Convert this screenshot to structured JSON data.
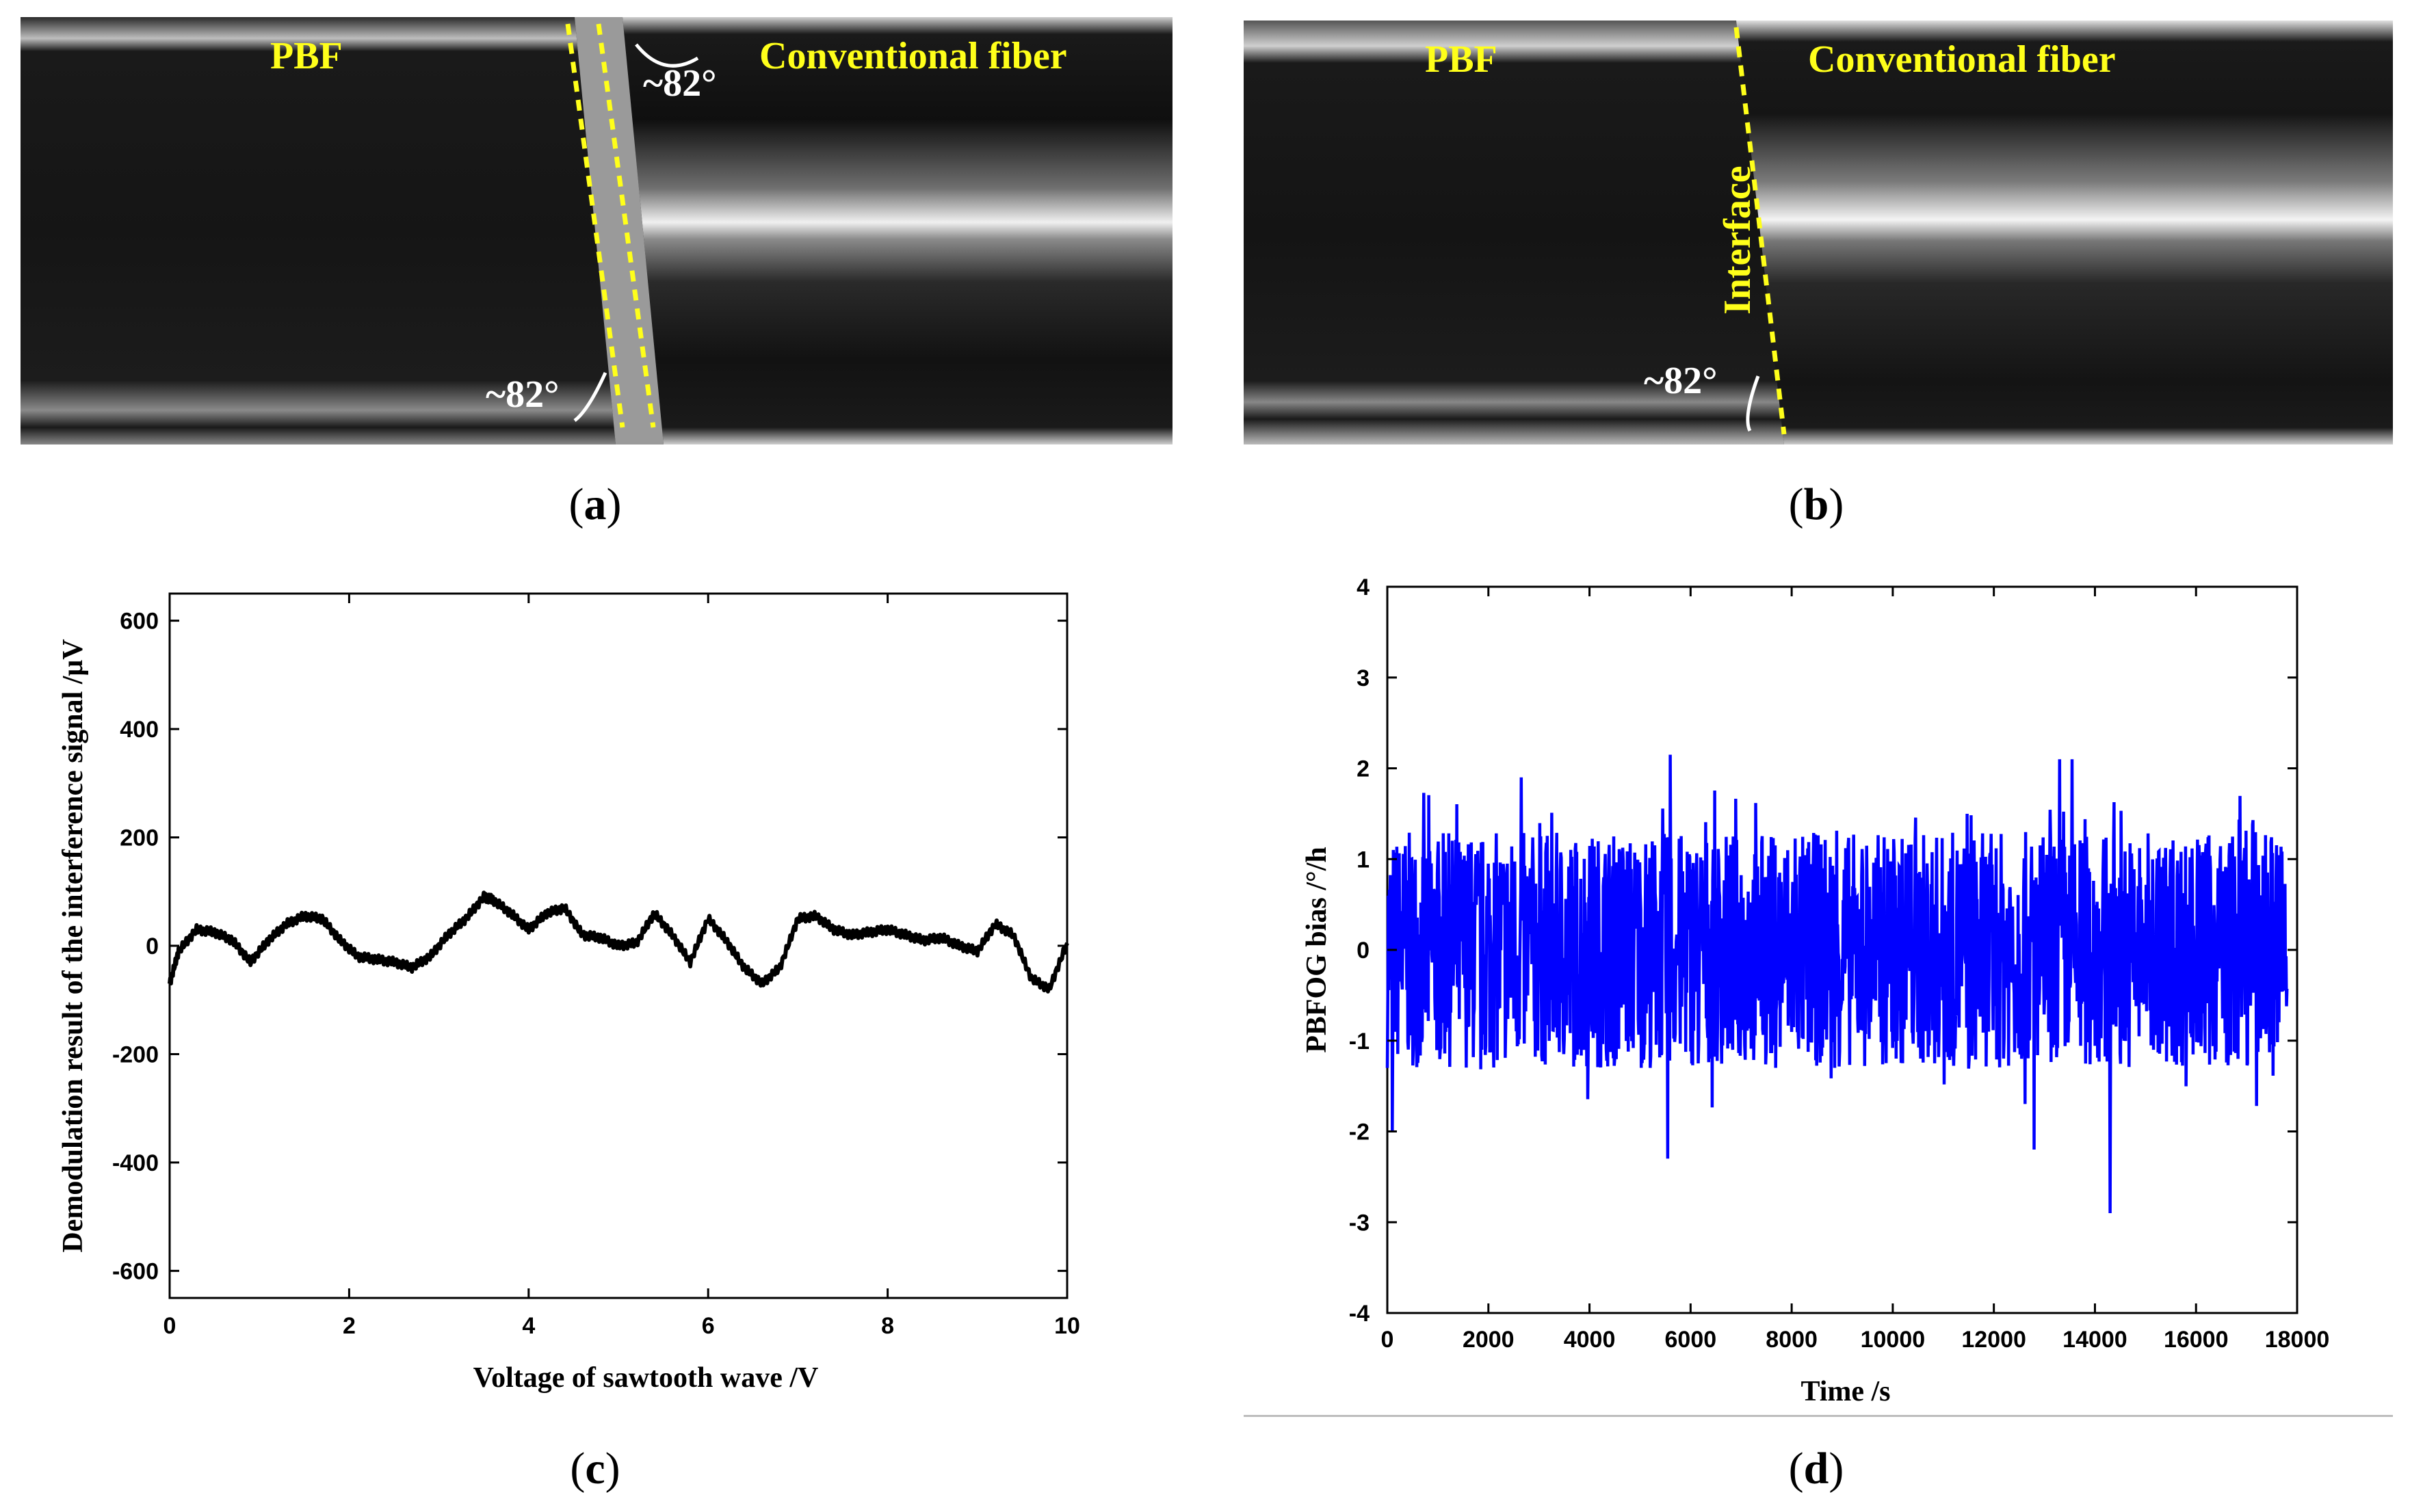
{
  "panels": {
    "a": {
      "label": "a",
      "pbf_label": "PBF",
      "fiber_label": "Conventional fiber",
      "angle_top": "~82°",
      "angle_bottom": "~82°"
    },
    "b": {
      "label": "b",
      "pbf_label": "PBF",
      "fiber_label": "Conventional fiber",
      "interface_label": "Interface",
      "angle_bottom": "~82°"
    },
    "c": {
      "label": "c",
      "xlabel": "Voltage of sawtooth wave  /V",
      "ylabel": "Demodulation result of the interference signal  /μV",
      "xticks": [
        "0",
        "2",
        "4",
        "6",
        "8",
        "10"
      ],
      "yticks": [
        "600",
        "400",
        "200",
        "0",
        "-200",
        "-400",
        "-600"
      ]
    },
    "d": {
      "label": "d",
      "xlabel": "Time  /s",
      "ylabel": "PBFOG bias  /°/h",
      "xticks": [
        "0",
        "2000",
        "4000",
        "6000",
        "8000",
        "10000",
        "12000",
        "14000",
        "16000",
        "18000"
      ],
      "yticks": [
        "4",
        "3",
        "2",
        "1",
        "0",
        "-1",
        "-2",
        "-3",
        "-4"
      ]
    }
  },
  "colors": {
    "annotation_yellow": "#ffff1a",
    "bias_line": "#0000ff",
    "demod_line": "#000000"
  },
  "chart_data": [
    {
      "type": "line",
      "title": "",
      "xlabel": "Voltage of sawtooth wave  /V",
      "ylabel": "Demodulation result of the interference signal  /μV",
      "xlim": [
        0,
        10
      ],
      "ylim": [
        -650,
        650
      ],
      "series": [
        {
          "name": "demodulation",
          "x": [
            0,
            0.1,
            0.3,
            0.5,
            0.7,
            0.9,
            1.1,
            1.3,
            1.5,
            1.7,
            1.9,
            2.1,
            2.3,
            2.5,
            2.7,
            2.9,
            3.1,
            3.3,
            3.5,
            3.6,
            3.8,
            4.0,
            4.2,
            4.4,
            4.6,
            4.8,
            5.0,
            5.2,
            5.4,
            5.6,
            5.8,
            6.0,
            6.2,
            6.4,
            6.6,
            6.8,
            7.0,
            7.2,
            7.4,
            7.6,
            7.8,
            8.0,
            8.2,
            8.4,
            8.6,
            8.8,
            9.0,
            9.2,
            9.4,
            9.6,
            9.8,
            10.0
          ],
          "y": [
            -70,
            -10,
            30,
            25,
            10,
            -30,
            10,
            40,
            55,
            50,
            10,
            -20,
            -25,
            -30,
            -40,
            -20,
            20,
            50,
            90,
            85,
            60,
            30,
            60,
            70,
            20,
            15,
            0,
            5,
            60,
            20,
            -30,
            50,
            10,
            -40,
            -70,
            -40,
            50,
            55,
            30,
            20,
            25,
            30,
            20,
            10,
            15,
            0,
            -10,
            40,
            20,
            -60,
            -80,
            5
          ]
        }
      ]
    },
    {
      "type": "line",
      "title": "",
      "xlabel": "Time  /s",
      "ylabel": "PBFOG bias  /°/h",
      "xlim": [
        0,
        18000
      ],
      "ylim": [
        -4,
        4
      ],
      "series": [
        {
          "name": "PBFOG bias",
          "x": [
            0,
            17800
          ],
          "y_range": [
            -1.5,
            1.5
          ],
          "noise_band": {
            "typical_amplitude": 1.3,
            "max": 2.15,
            "min": -2.9
          },
          "spikes": [
            {
              "x": 5600,
              "y": 2.15
            },
            {
              "x": 13300,
              "y": 2.1
            },
            {
              "x": 13550,
              "y": 2.1
            },
            {
              "x": 14300,
              "y": -2.9
            },
            {
              "x": 5550,
              "y": -2.3
            },
            {
              "x": 12800,
              "y": -2.2
            },
            {
              "x": 100,
              "y": -2.0
            },
            {
              "x": 2650,
              "y": 1.9
            }
          ]
        }
      ]
    }
  ]
}
